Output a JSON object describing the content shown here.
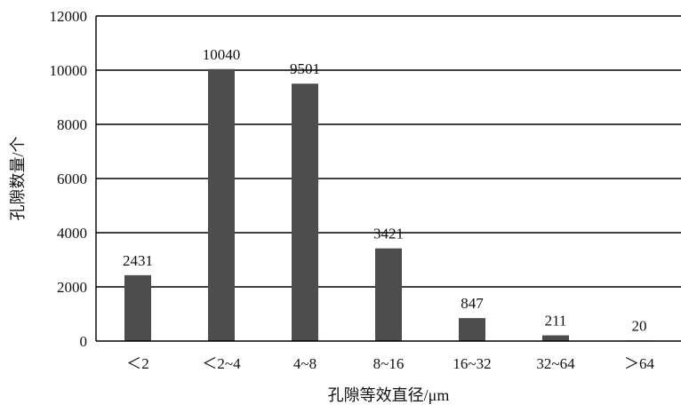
{
  "chart_data": {
    "type": "bar",
    "categories": [
      "＜2",
      "＜2~4",
      "4~8",
      "8~16",
      "16~32",
      "32~64",
      "＞64"
    ],
    "values": [
      2431,
      10040,
      9501,
      3421,
      847,
      211,
      20
    ],
    "data_labels": [
      "2431",
      "10040",
      "9501",
      "3421",
      "847",
      "211",
      "20"
    ],
    "xlabel": "孔隙等效直径/μm",
    "ylabel": "孔隙数量/个",
    "ylim": [
      0,
      12000
    ],
    "yticks": [
      0,
      2000,
      4000,
      6000,
      8000,
      10000,
      12000
    ],
    "ytick_labels": [
      "0",
      "2000",
      "4000",
      "6000",
      "8000",
      "10000",
      "12000"
    ],
    "grid": true,
    "colors": {
      "bar": "#4d4d4d",
      "grid": "#000000",
      "axis": "#000000"
    }
  }
}
